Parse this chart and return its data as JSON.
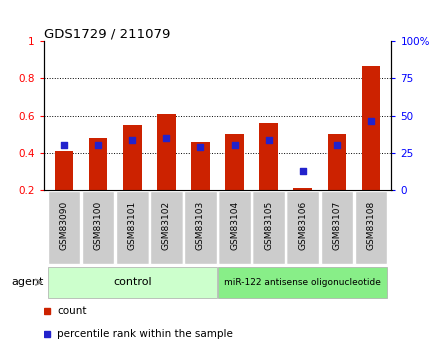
{
  "title": "GDS1729 / 211079",
  "categories": [
    "GSM83090",
    "GSM83100",
    "GSM83101",
    "GSM83102",
    "GSM83103",
    "GSM83104",
    "GSM83105",
    "GSM83106",
    "GSM83107",
    "GSM83108"
  ],
  "count_values": [
    0.41,
    0.48,
    0.55,
    0.61,
    0.46,
    0.5,
    0.56,
    0.21,
    0.5,
    0.87
  ],
  "percentile_values": [
    0.44,
    0.44,
    0.47,
    0.48,
    0.43,
    0.44,
    0.47,
    0.3,
    0.44,
    0.57
  ],
  "bar_color": "#cc2200",
  "dot_color": "#2222cc",
  "ylim_left": [
    0.2,
    1.0
  ],
  "ylim_right": [
    0,
    100
  ],
  "yticks_left": [
    0.2,
    0.4,
    0.6,
    0.8,
    1.0
  ],
  "yticks_right": [
    0,
    25,
    50,
    75,
    100
  ],
  "ytick_labels_right": [
    "0",
    "25",
    "50",
    "75",
    "100%"
  ],
  "ytick_labels_left": [
    "0.2",
    "0.4",
    "0.6",
    "0.8",
    "1"
  ],
  "control_label": "control",
  "treatment_label": "miR-122 antisense oligonucleotide",
  "agent_label": "agent",
  "n_control": 5,
  "n_treatment": 5,
  "legend_count": "count",
  "legend_percentile": "percentile rank within the sample",
  "bar_width": 0.55,
  "control_color": "#ccffcc",
  "treatment_color": "#88ee88",
  "xlabel_bg": "#cccccc",
  "bg_color": "#ffffff"
}
